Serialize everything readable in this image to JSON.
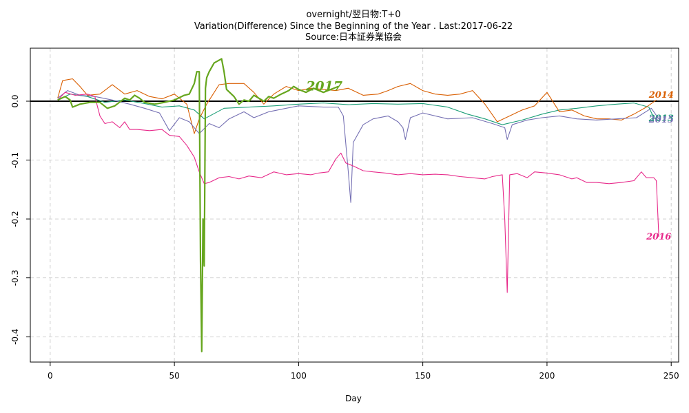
{
  "chart_data": {
    "type": "line",
    "title": "overnight/翌日物:T+0",
    "subtitle": "Variation(Difference) Since the Beginning of the Year . Last:2017-06-22",
    "source": "Source:日本証券業協会",
    "xlabel": "Day",
    "ylabel": "",
    "xlim": [
      -8,
      253
    ],
    "ylim": [
      -0.443,
      0.09
    ],
    "xticks": [
      0,
      50,
      100,
      150,
      200,
      250
    ],
    "yticks": [
      0.0,
      -0.1,
      -0.2,
      -0.3,
      -0.4
    ],
    "xtick_labels": [
      "0",
      "50",
      "100",
      "150",
      "200",
      "250"
    ],
    "ytick_labels": [
      "0.0",
      "-0.1",
      "-0.2",
      "-0.3",
      "-0.4"
    ],
    "grid": true,
    "zero_line": true,
    "series": [
      {
        "name": "2013",
        "color": "#1b9e77",
        "label_point": [
          241,
          -0.034
        ],
        "points": [
          [
            3,
            0.002
          ],
          [
            8,
            0.012
          ],
          [
            15,
            0.008
          ],
          [
            22,
            -0.002
          ],
          [
            30,
            0.002
          ],
          [
            38,
            -0.004
          ],
          [
            45,
            -0.01
          ],
          [
            52,
            -0.008
          ],
          [
            58,
            -0.015
          ],
          [
            62,
            -0.03
          ],
          [
            70,
            -0.012
          ],
          [
            80,
            -0.01
          ],
          [
            90,
            -0.008
          ],
          [
            100,
            -0.005
          ],
          [
            110,
            -0.003
          ],
          [
            120,
            -0.006
          ],
          [
            130,
            -0.004
          ],
          [
            140,
            -0.005
          ],
          [
            150,
            -0.004
          ],
          [
            160,
            -0.01
          ],
          [
            168,
            -0.022
          ],
          [
            175,
            -0.03
          ],
          [
            182,
            -0.04
          ],
          [
            190,
            -0.032
          ],
          [
            198,
            -0.022
          ],
          [
            205,
            -0.015
          ],
          [
            212,
            -0.012
          ],
          [
            220,
            -0.008
          ],
          [
            228,
            -0.005
          ],
          [
            235,
            -0.003
          ],
          [
            241,
            -0.01
          ],
          [
            243,
            -0.028
          ],
          [
            245,
            -0.033
          ]
        ]
      },
      {
        "name": "2014",
        "color": "#d95f02",
        "label_point": [
          241,
          0.006
        ],
        "points": [
          [
            3,
            0.005
          ],
          [
            5,
            0.035
          ],
          [
            9,
            0.038
          ],
          [
            12,
            0.025
          ],
          [
            15,
            0.01
          ],
          [
            20,
            0.012
          ],
          [
            25,
            0.028
          ],
          [
            30,
            0.012
          ],
          [
            35,
            0.018
          ],
          [
            40,
            0.008
          ],
          [
            45,
            0.004
          ],
          [
            50,
            0.012
          ],
          [
            55,
            -0.005
          ],
          [
            58,
            -0.055
          ],
          [
            60,
            -0.03
          ],
          [
            63,
            -0.005
          ],
          [
            68,
            0.028
          ],
          [
            72,
            0.03
          ],
          [
            78,
            0.03
          ],
          [
            82,
            0.015
          ],
          [
            86,
            -0.005
          ],
          [
            90,
            0.012
          ],
          [
            95,
            0.025
          ],
          [
            100,
            0.018
          ],
          [
            105,
            0.022
          ],
          [
            110,
            0.02
          ],
          [
            115,
            0.018
          ],
          [
            120,
            0.022
          ],
          [
            126,
            0.01
          ],
          [
            132,
            0.012
          ],
          [
            136,
            0.018
          ],
          [
            140,
            0.025
          ],
          [
            145,
            0.03
          ],
          [
            150,
            0.018
          ],
          [
            155,
            0.012
          ],
          [
            160,
            0.01
          ],
          [
            165,
            0.012
          ],
          [
            170,
            0.018
          ],
          [
            175,
            -0.005
          ],
          [
            180,
            -0.035
          ],
          [
            185,
            -0.025
          ],
          [
            190,
            -0.015
          ],
          [
            195,
            -0.008
          ],
          [
            200,
            0.015
          ],
          [
            205,
            -0.018
          ],
          [
            210,
            -0.015
          ],
          [
            215,
            -0.025
          ],
          [
            220,
            -0.03
          ],
          [
            225,
            -0.03
          ],
          [
            230,
            -0.032
          ],
          [
            235,
            -0.022
          ],
          [
            240,
            -0.01
          ],
          [
            244,
            0.002
          ]
        ]
      },
      {
        "name": "2015",
        "color": "#7570b3",
        "label_point": [
          241,
          -0.036
        ],
        "points": [
          [
            3,
            0.005
          ],
          [
            7,
            0.018
          ],
          [
            12,
            0.01
          ],
          [
            18,
            0.008
          ],
          [
            25,
            0.002
          ],
          [
            32,
            -0.005
          ],
          [
            38,
            -0.012
          ],
          [
            44,
            -0.02
          ],
          [
            48,
            -0.05
          ],
          [
            52,
            -0.028
          ],
          [
            56,
            -0.035
          ],
          [
            60,
            -0.055
          ],
          [
            64,
            -0.038
          ],
          [
            68,
            -0.045
          ],
          [
            72,
            -0.03
          ],
          [
            78,
            -0.018
          ],
          [
            82,
            -0.028
          ],
          [
            88,
            -0.018
          ],
          [
            95,
            -0.012
          ],
          [
            100,
            -0.008
          ],
          [
            110,
            -0.01
          ],
          [
            116,
            -0.01
          ],
          [
            118,
            -0.025
          ],
          [
            120,
            -0.12
          ],
          [
            121,
            -0.172
          ],
          [
            122,
            -0.07
          ],
          [
            126,
            -0.04
          ],
          [
            130,
            -0.03
          ],
          [
            136,
            -0.025
          ],
          [
            140,
            -0.035
          ],
          [
            142,
            -0.045
          ],
          [
            143,
            -0.065
          ],
          [
            145,
            -0.028
          ],
          [
            150,
            -0.02
          ],
          [
            160,
            -0.03
          ],
          [
            170,
            -0.028
          ],
          [
            178,
            -0.038
          ],
          [
            183,
            -0.045
          ],
          [
            184,
            -0.065
          ],
          [
            186,
            -0.04
          ],
          [
            192,
            -0.032
          ],
          [
            198,
            -0.028
          ],
          [
            205,
            -0.025
          ],
          [
            212,
            -0.03
          ],
          [
            220,
            -0.032
          ],
          [
            228,
            -0.03
          ],
          [
            236,
            -0.028
          ],
          [
            242,
            -0.012
          ],
          [
            245,
            -0.03
          ]
        ]
      },
      {
        "name": "2016",
        "color": "#e7298a",
        "label_point": [
          240,
          -0.235
        ],
        "points": [
          [
            3,
            0.002
          ],
          [
            6,
            0.015
          ],
          [
            10,
            0.01
          ],
          [
            15,
            0.012
          ],
          [
            18,
            0.008
          ],
          [
            20,
            -0.025
          ],
          [
            22,
            -0.038
          ],
          [
            25,
            -0.035
          ],
          [
            28,
            -0.045
          ],
          [
            30,
            -0.035
          ],
          [
            32,
            -0.048
          ],
          [
            35,
            -0.048
          ],
          [
            40,
            -0.05
          ],
          [
            45,
            -0.048
          ],
          [
            48,
            -0.058
          ],
          [
            52,
            -0.06
          ],
          [
            55,
            -0.075
          ],
          [
            58,
            -0.095
          ],
          [
            60,
            -0.12
          ],
          [
            62,
            -0.14
          ],
          [
            64,
            -0.138
          ],
          [
            68,
            -0.13
          ],
          [
            72,
            -0.128
          ],
          [
            76,
            -0.132
          ],
          [
            80,
            -0.127
          ],
          [
            85,
            -0.13
          ],
          [
            90,
            -0.12
          ],
          [
            95,
            -0.125
          ],
          [
            100,
            -0.123
          ],
          [
            105,
            -0.125
          ],
          [
            108,
            -0.122
          ],
          [
            112,
            -0.12
          ],
          [
            115,
            -0.098
          ],
          [
            117,
            -0.088
          ],
          [
            119,
            -0.105
          ],
          [
            122,
            -0.11
          ],
          [
            126,
            -0.118
          ],
          [
            130,
            -0.12
          ],
          [
            135,
            -0.122
          ],
          [
            140,
            -0.125
          ],
          [
            145,
            -0.123
          ],
          [
            150,
            -0.125
          ],
          [
            155,
            -0.124
          ],
          [
            160,
            -0.125
          ],
          [
            165,
            -0.128
          ],
          [
            170,
            -0.13
          ],
          [
            175,
            -0.132
          ],
          [
            178,
            -0.128
          ],
          [
            182,
            -0.125
          ],
          [
            183,
            -0.2
          ],
          [
            184,
            -0.325
          ],
          [
            185,
            -0.125
          ],
          [
            188,
            -0.123
          ],
          [
            192,
            -0.13
          ],
          [
            195,
            -0.12
          ],
          [
            200,
            -0.122
          ],
          [
            205,
            -0.125
          ],
          [
            210,
            -0.132
          ],
          [
            212,
            -0.13
          ],
          [
            216,
            -0.138
          ],
          [
            220,
            -0.138
          ],
          [
            225,
            -0.14
          ],
          [
            230,
            -0.138
          ],
          [
            235,
            -0.135
          ],
          [
            238,
            -0.12
          ],
          [
            240,
            -0.13
          ],
          [
            243,
            -0.13
          ],
          [
            244,
            -0.135
          ],
          [
            245,
            -0.23
          ]
        ]
      },
      {
        "name": "2017",
        "color": "#66a61e",
        "label_point": [
          103,
          0.018
        ],
        "points": [
          [
            3,
            0.002
          ],
          [
            6,
            0.008
          ],
          [
            8,
            0.002
          ],
          [
            9,
            -0.01
          ],
          [
            12,
            -0.005
          ],
          [
            16,
            -0.002
          ],
          [
            20,
            -0.002
          ],
          [
            23,
            -0.012
          ],
          [
            26,
            -0.008
          ],
          [
            30,
            0.005
          ],
          [
            32,
            0.002
          ],
          [
            34,
            0.01
          ],
          [
            36,
            0.005
          ],
          [
            38,
            -0.002
          ],
          [
            42,
            -0.005
          ],
          [
            46,
            -0.002
          ],
          [
            50,
            0.002
          ],
          [
            54,
            0.01
          ],
          [
            56,
            0.012
          ],
          [
            58,
            0.03
          ],
          [
            59,
            0.05
          ],
          [
            60,
            0.05
          ],
          [
            60.5,
            -0.27
          ],
          [
            61,
            -0.425
          ],
          [
            61.5,
            -0.2
          ],
          [
            62,
            -0.28
          ],
          [
            62.5,
            0.022
          ],
          [
            63,
            0.04
          ],
          [
            64,
            0.05
          ],
          [
            66,
            0.065
          ],
          [
            69,
            0.072
          ],
          [
            70,
            0.05
          ],
          [
            71,
            0.02
          ],
          [
            74,
            0.008
          ],
          [
            76,
            -0.005
          ],
          [
            78,
            0.002
          ],
          [
            80,
            0.0
          ],
          [
            82,
            0.01
          ],
          [
            84,
            0.005
          ],
          [
            86,
            0.0
          ],
          [
            88,
            0.008
          ],
          [
            90,
            0.005
          ],
          [
            93,
            0.012
          ],
          [
            96,
            0.018
          ],
          [
            98,
            0.025
          ],
          [
            100,
            0.02
          ],
          [
            103,
            0.015
          ],
          [
            106,
            0.022
          ],
          [
            110,
            0.015
          ],
          [
            113,
            0.02
          ],
          [
            116,
            0.025
          ]
        ]
      }
    ]
  }
}
